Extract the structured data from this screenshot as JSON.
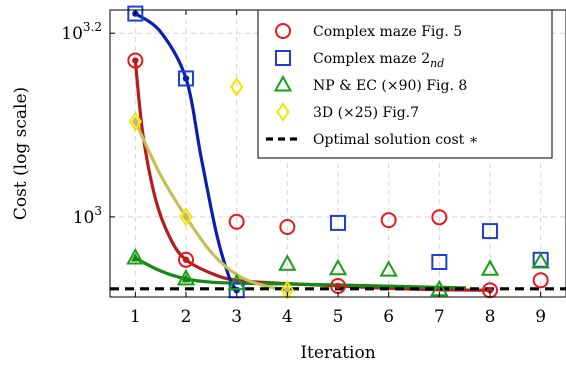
{
  "chart_data": {
    "type": "scatter",
    "title": "",
    "xlabel": "Iteration",
    "ylabel": "Cost (log scale)",
    "x_ticks": [
      1,
      2,
      3,
      4,
      5,
      6,
      7,
      8,
      9
    ],
    "xlim": [
      0.5,
      9.5
    ],
    "y_scale": "log",
    "ylim": [
      818,
      1680
    ],
    "y_ticks": [
      {
        "value": 1000,
        "base": "10",
        "exp": "3"
      },
      {
        "value": 1585,
        "base": "10",
        "exp": "3.2"
      }
    ],
    "grid": true,
    "legend_position": "top-right",
    "optimal_cost": 835,
    "series": [
      {
        "name": "Complex maze Fig. 5",
        "color": "#e41a1c",
        "marker": "circle",
        "points": [
          [
            1,
            1480
          ],
          [
            2,
            898
          ],
          [
            3,
            988
          ],
          [
            4,
            975
          ],
          [
            5,
            841
          ],
          [
            6,
            992
          ],
          [
            7,
            999
          ],
          [
            8,
            832
          ],
          [
            9,
            853
          ]
        ],
        "curve": [
          [
            1,
            1480
          ],
          [
            1.15,
            1230
          ],
          [
            1.4,
            1045
          ],
          [
            1.7,
            945
          ],
          [
            2,
            898
          ],
          [
            2.5,
            868
          ],
          [
            3,
            853
          ],
          [
            4,
            846
          ],
          [
            5,
            841
          ],
          [
            6,
            836
          ],
          [
            7,
            833
          ],
          [
            8,
            832
          ]
        ]
      },
      {
        "name": "Complex maze 2nd",
        "color": "#1f3fd6",
        "marker": "square",
        "points": [
          [
            1,
            1665
          ],
          [
            2,
            1415
          ],
          [
            3,
            832
          ],
          [
            5,
            985
          ],
          [
            7,
            893
          ],
          [
            8,
            965
          ],
          [
            9,
            898
          ]
        ],
        "curve": [
          [
            1,
            1665
          ],
          [
            1.5,
            1590
          ],
          [
            2,
            1415
          ],
          [
            2.3,
            1160
          ],
          [
            2.6,
            960
          ],
          [
            2.85,
            860
          ],
          [
            3,
            832
          ]
        ]
      },
      {
        "name": "NP & EC (×90)  Fig. 8",
        "color": "#1a9e1a",
        "marker": "triangle",
        "points": [
          [
            1,
            902
          ],
          [
            2,
            856
          ],
          [
            3,
            846
          ],
          [
            4,
            888
          ],
          [
            5,
            878
          ],
          [
            6,
            875
          ],
          [
            7,
            833
          ],
          [
            8,
            877
          ],
          [
            9,
            893
          ]
        ],
        "curve": [
          [
            1,
            902
          ],
          [
            1.5,
            873
          ],
          [
            2,
            856
          ],
          [
            2.5,
            849
          ],
          [
            3,
            847
          ],
          [
            5,
            843
          ],
          [
            7,
            838
          ],
          [
            7.5,
            837
          ]
        ]
      },
      {
        "name": "3D (×25)  Fig.7",
        "color": "#f2e600",
        "marker": "diamond",
        "points": [
          [
            1,
            1270
          ],
          [
            2,
            1000
          ],
          [
            3,
            1385
          ],
          [
            4,
            832
          ]
        ],
        "curve": [
          [
            1,
            1270
          ],
          [
            1.5,
            1110
          ],
          [
            2,
            1000
          ],
          [
            2.5,
            915
          ],
          [
            3,
            865
          ],
          [
            3.5,
            843
          ],
          [
            4,
            832
          ]
        ]
      }
    ],
    "curve_colors": {
      "Complex maze Fig. 5": "#b71c1c",
      "Complex maze 2nd": "#0a1fb0",
      "NP & EC (×90)  Fig. 8": "#138a13",
      "3D (×25)  Fig.7": "#c9bd55"
    },
    "legend": [
      {
        "label": "Complex maze Fig. 5",
        "marker": "circle",
        "color": "#e41a1c"
      },
      {
        "label": "Complex maze 2",
        "sub": "nd",
        "marker": "square",
        "color": "#1f3fd6"
      },
      {
        "label": "NP & EC (×90)  Fig. 8",
        "marker": "triangle",
        "color": "#1a9e1a"
      },
      {
        "label": "3D (×25)  Fig.7",
        "marker": "diamond",
        "color": "#f2e600"
      },
      {
        "label": "Optimal solution cost ∗",
        "marker": "dashed-line",
        "color": "#000000"
      }
    ]
  }
}
